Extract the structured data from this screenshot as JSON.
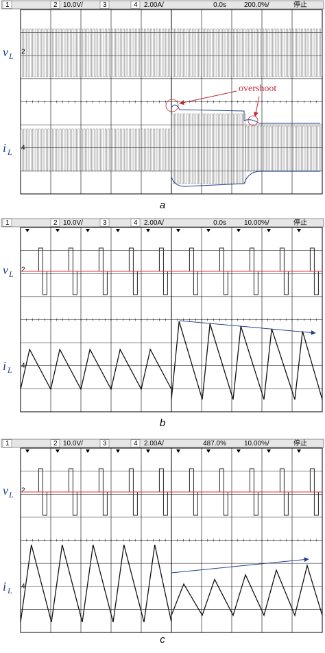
{
  "panels": [
    {
      "header": {
        "ch1": "1",
        "ch2": "2",
        "ch2_scale": "10.0V/",
        "ch3": "3",
        "ch4": "4",
        "ch4_scale": "2.00A/",
        "delay": "0.0s",
        "timebase": "200.0%/",
        "status": "停止"
      },
      "voltage_label": {
        "symbol": "v",
        "subscript": "L"
      },
      "current_label": {
        "symbol": "i",
        "subscript": "L"
      },
      "voltage_marker": "2",
      "current_marker": "4",
      "annotation": "overshoot",
      "caption": "a"
    },
    {
      "header": {
        "ch1": "1",
        "ch2": "2",
        "ch2_scale": "10.0V/",
        "ch3": "3",
        "ch4": "4",
        "ch4_scale": "2.00A/",
        "delay": "0.0s",
        "timebase": "10.00%/",
        "status": "停止"
      },
      "voltage_label": {
        "symbol": "v",
        "subscript": "L"
      },
      "current_label": {
        "symbol": "i",
        "subscript": "L"
      },
      "voltage_marker": "2",
      "current_marker": "4",
      "caption": "b"
    },
    {
      "header": {
        "ch1": "1",
        "ch2": "2",
        "ch2_scale": "10.0V/",
        "ch3": "3",
        "ch4": "4",
        "ch4_scale": "2.00A/",
        "delay": "487.0%",
        "timebase": "10.00%/",
        "status": "停止"
      },
      "voltage_label": {
        "symbol": "v",
        "subscript": "L"
      },
      "current_label": {
        "symbol": "i",
        "subscript": "L"
      },
      "voltage_marker": "2",
      "current_marker": "4",
      "caption": "c"
    }
  ]
}
